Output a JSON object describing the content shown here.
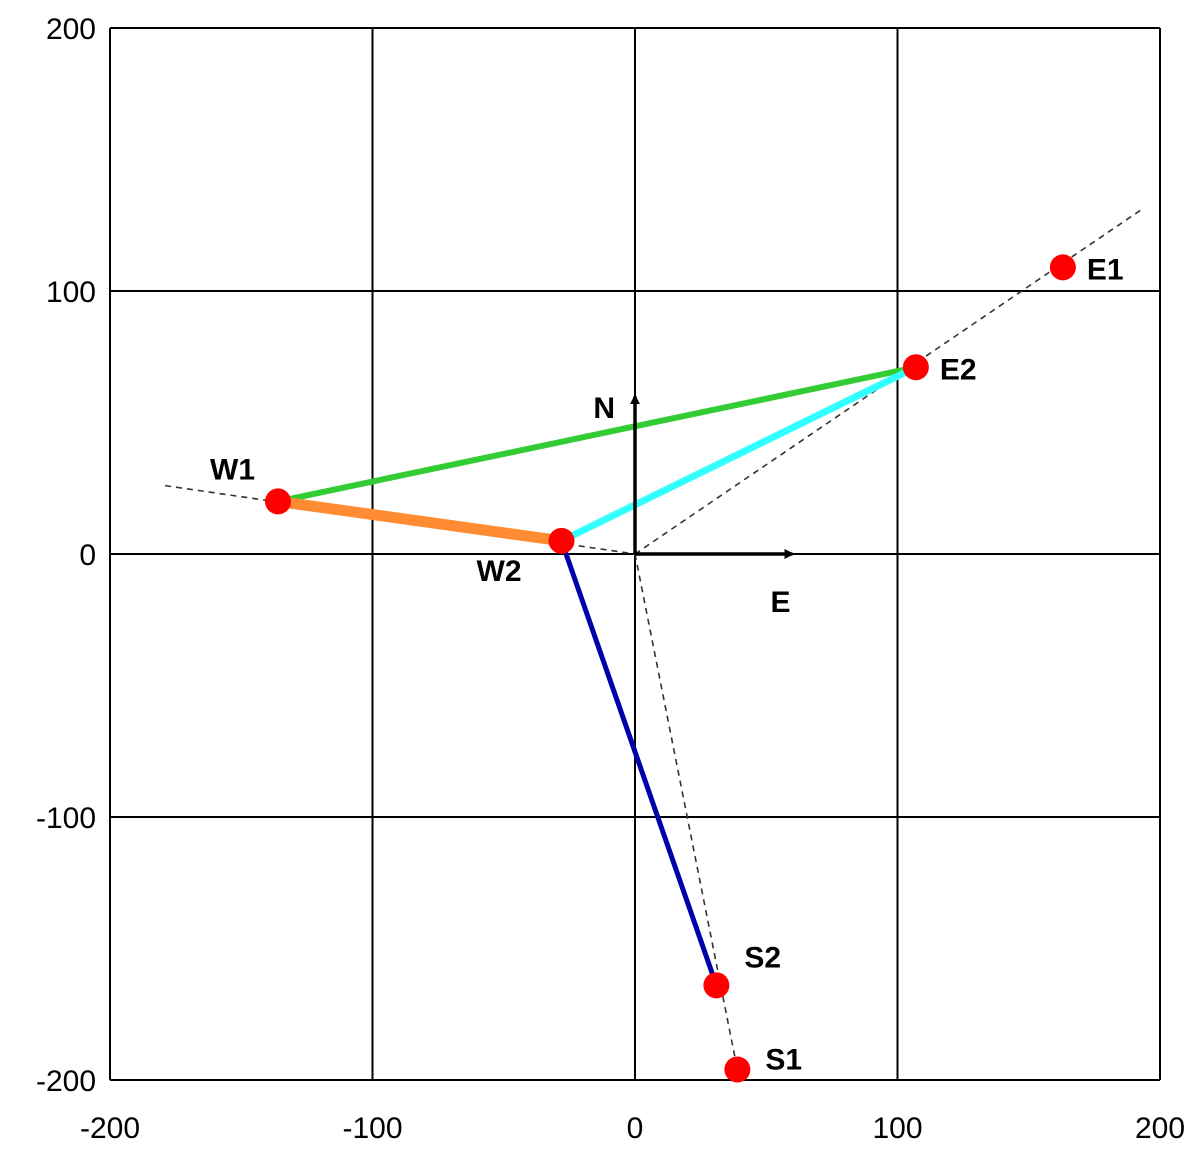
{
  "chart_data": {
    "type": "scatter",
    "xlim": [
      -200,
      200
    ],
    "ylim": [
      -200,
      200
    ],
    "grid": true,
    "x_ticks": [
      -200,
      -100,
      0,
      100,
      200
    ],
    "y_ticks": [
      -200,
      -100,
      0,
      100,
      200
    ],
    "x_tick_labels": [
      "-200",
      "-100",
      "0",
      "100",
      "200"
    ],
    "y_tick_labels": [
      "-200",
      "-100",
      "0",
      "100",
      "200"
    ],
    "points": [
      {
        "label": "W1",
        "x": -136,
        "y": 20,
        "color": "#ff0000"
      },
      {
        "label": "W2",
        "x": -28,
        "y": 5,
        "color": "#ff0000"
      },
      {
        "label": "E1",
        "x": 163,
        "y": 109,
        "color": "#ff0000"
      },
      {
        "label": "E2",
        "x": 107,
        "y": 71,
        "color": "#ff0000"
      },
      {
        "label": "S1",
        "x": 39,
        "y": -196,
        "color": "#ff0000"
      },
      {
        "label": "S2",
        "x": 31,
        "y": -164,
        "color": "#ff0000"
      }
    ],
    "segments": [
      {
        "from": "W1",
        "to": "E2",
        "color": "#33cc33"
      },
      {
        "from": "W2",
        "to": "E2",
        "color": "#33ffff"
      },
      {
        "from": "W1",
        "to": "W2",
        "color": "#ff8c33"
      },
      {
        "from": "W2",
        "to": "S2",
        "color": "#0000aa"
      }
    ],
    "dashed_lines": [
      {
        "x1": -179,
        "y1": 26,
        "x2": 0,
        "y2": 0
      },
      {
        "x1": 0,
        "y1": 0,
        "x2": 193,
        "y2": 131
      },
      {
        "x1": 0,
        "y1": 0,
        "x2": 39,
        "y2": -196
      }
    ],
    "compass": {
      "north_label": "N",
      "east_label": "E",
      "origin": [
        0,
        0
      ],
      "north_tip": [
        0,
        60
      ],
      "east_tip": [
        60,
        0
      ]
    }
  }
}
